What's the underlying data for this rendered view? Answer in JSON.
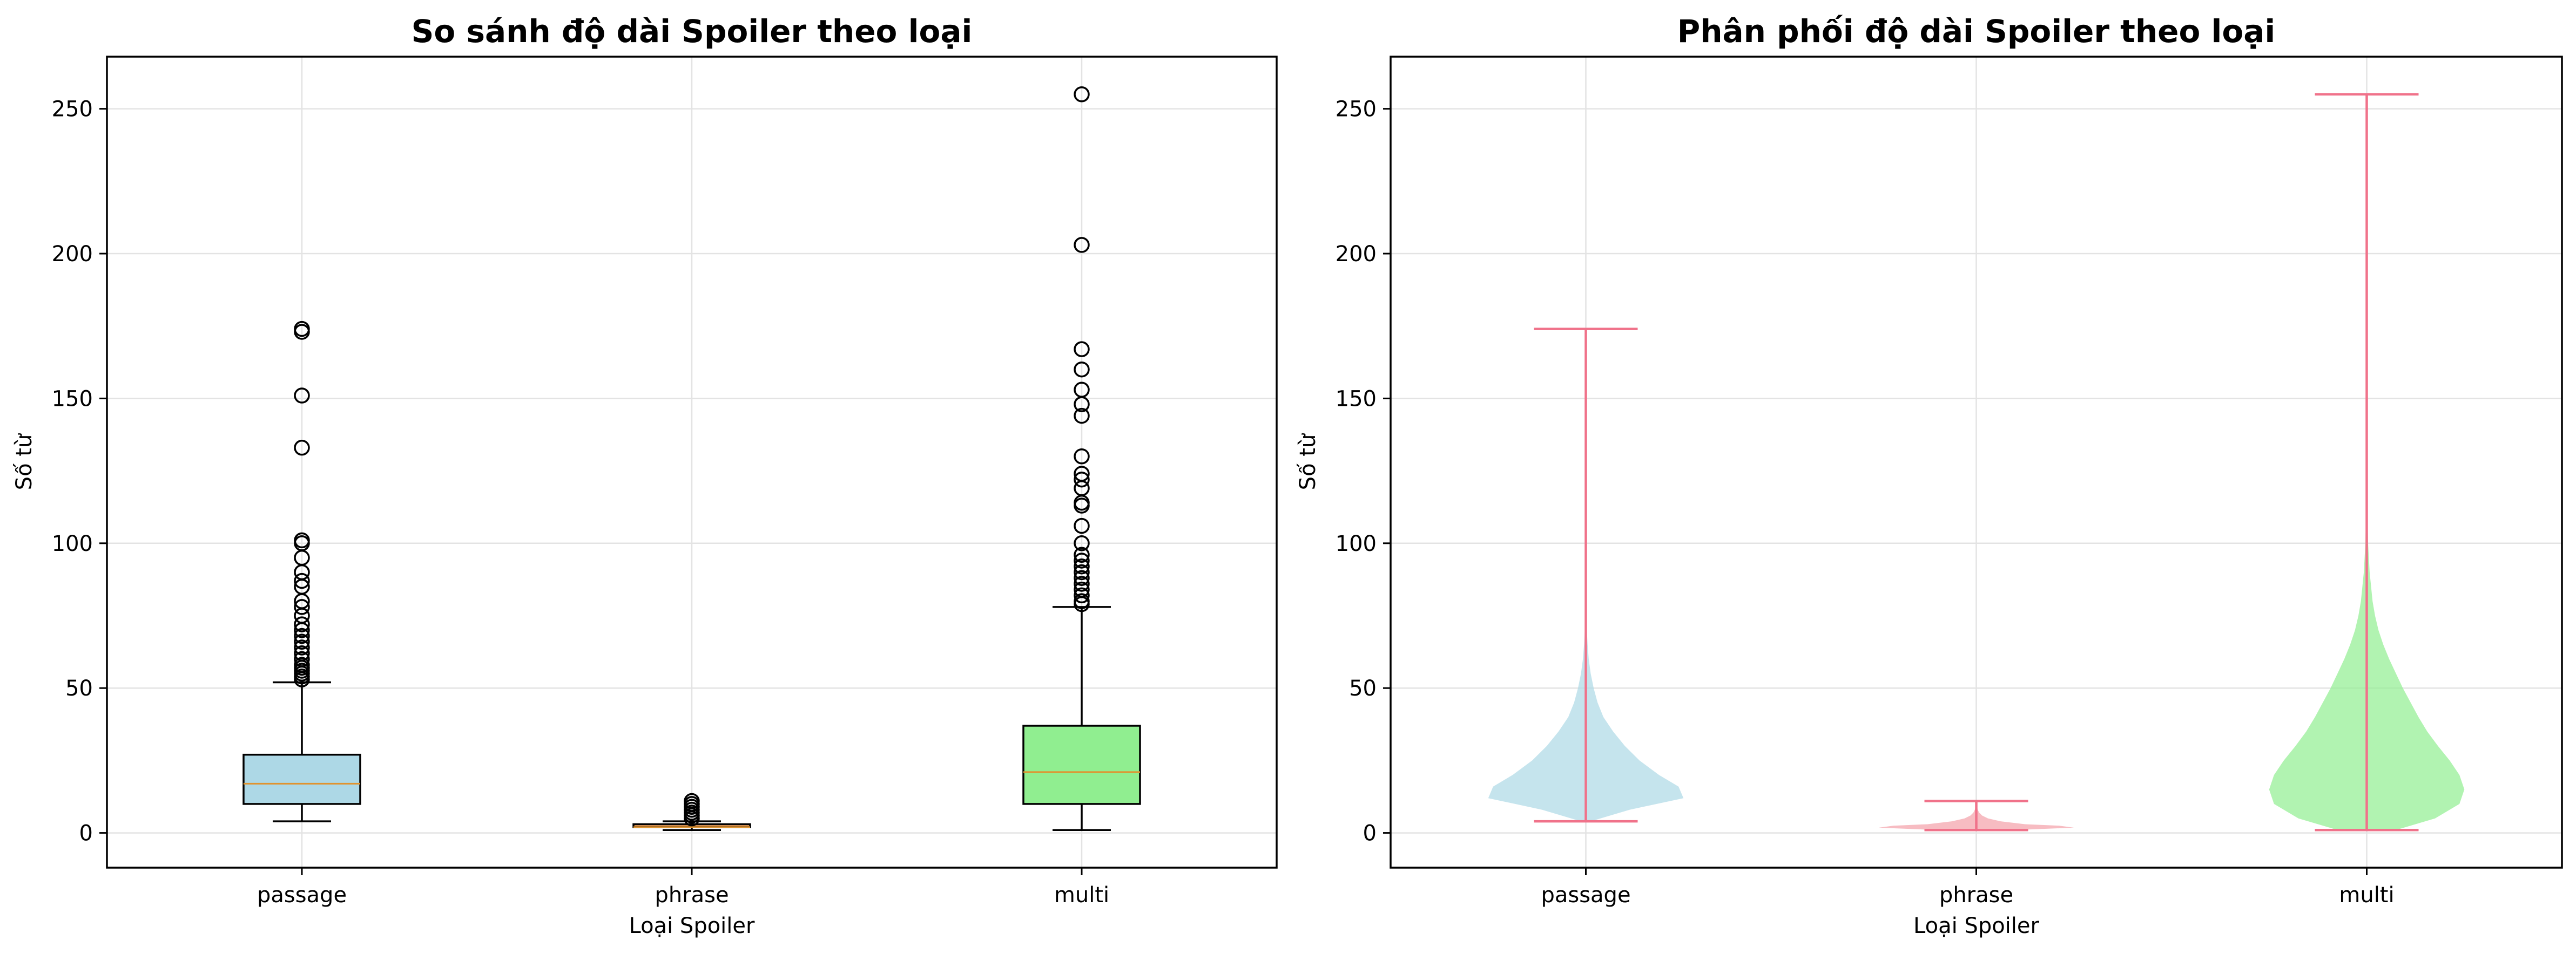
{
  "chart_data": [
    {
      "type": "box",
      "title": "So sánh độ dài Spoiler theo loại",
      "xlabel": "Loại Spoiler",
      "ylabel": "Số từ",
      "ylim": [
        -12,
        268
      ],
      "yticks": [
        0,
        50,
        100,
        150,
        200,
        250
      ],
      "grid": true,
      "categories": [
        "passage",
        "phrase",
        "multi"
      ],
      "boxes": [
        {
          "category": "passage",
          "color": "#add8e6",
          "whisker_low": 4,
          "q1": 10,
          "median": 17,
          "q3": 27,
          "whisker_high": 52,
          "outliers": [
            53,
            54,
            55,
            56,
            57,
            58,
            60,
            62,
            64,
            66,
            68,
            70,
            72,
            75,
            78,
            80,
            85,
            87,
            90,
            95,
            100,
            101,
            133,
            151,
            173,
            174
          ]
        },
        {
          "category": "phrase",
          "color": "#f4a460",
          "whisker_low": 1,
          "q1": 2,
          "median": 2,
          "q3": 3,
          "whisker_high": 4,
          "outliers": [
            5,
            6,
            7,
            8,
            9,
            10,
            11
          ]
        },
        {
          "category": "multi",
          "color": "#90ee90",
          "whisker_low": 1,
          "q1": 10,
          "median": 21,
          "q3": 37,
          "whisker_high": 78,
          "outliers": [
            79,
            80,
            82,
            84,
            86,
            88,
            90,
            92,
            94,
            96,
            100,
            106,
            113,
            114,
            119,
            122,
            124,
            130,
            144,
            148,
            153,
            160,
            167,
            203,
            255
          ]
        }
      ]
    },
    {
      "type": "violin",
      "title": "Phân phối độ dài Spoiler theo loại",
      "xlabel": "Loại Spoiler",
      "ylabel": "Số từ",
      "ylim": [
        -12,
        268
      ],
      "yticks": [
        0,
        50,
        100,
        150,
        200,
        250
      ],
      "grid": true,
      "categories": [
        "passage",
        "phrase",
        "multi"
      ],
      "line_color": "#f0728a",
      "violins": [
        {
          "category": "passage",
          "min": 4,
          "max": 174,
          "color": "#add8e6",
          "profile": [
            [
              4,
              0.05
            ],
            [
              8,
              0.45
            ],
            [
              12,
              1.0
            ],
            [
              16,
              0.95
            ],
            [
              20,
              0.75
            ],
            [
              25,
              0.55
            ],
            [
              30,
              0.4
            ],
            [
              35,
              0.28
            ],
            [
              40,
              0.18
            ],
            [
              45,
              0.12
            ],
            [
              50,
              0.08
            ],
            [
              55,
              0.05
            ],
            [
              60,
              0.03
            ],
            [
              65,
              0.018
            ],
            [
              70,
              0.01
            ],
            [
              80,
              0.005
            ],
            [
              90,
              0.003
            ],
            [
              100,
              0.002
            ],
            [
              130,
              0.001
            ],
            [
              174,
              0.0
            ]
          ]
        },
        {
          "category": "phrase",
          "min": 1,
          "max": 11,
          "color": "#f4a0a8",
          "profile": [
            [
              1,
              0.4
            ],
            [
              1.8,
              1.0
            ],
            [
              2.5,
              0.85
            ],
            [
              3,
              0.5
            ],
            [
              4,
              0.25
            ],
            [
              5,
              0.12
            ],
            [
              6,
              0.06
            ],
            [
              7,
              0.03
            ],
            [
              8,
              0.015
            ],
            [
              9,
              0.008
            ],
            [
              10,
              0.004
            ],
            [
              11,
              0.0
            ]
          ]
        },
        {
          "category": "multi",
          "min": 1,
          "max": 255,
          "color": "#90ee90",
          "profile": [
            [
              1,
              0.3
            ],
            [
              5,
              0.7
            ],
            [
              10,
              0.95
            ],
            [
              15,
              1.0
            ],
            [
              20,
              0.95
            ],
            [
              25,
              0.85
            ],
            [
              30,
              0.73
            ],
            [
              35,
              0.62
            ],
            [
              40,
              0.53
            ],
            [
              45,
              0.45
            ],
            [
              50,
              0.37
            ],
            [
              55,
              0.3
            ],
            [
              60,
              0.23
            ],
            [
              65,
              0.17
            ],
            [
              70,
              0.12
            ],
            [
              75,
              0.085
            ],
            [
              80,
              0.06
            ],
            [
              90,
              0.03
            ],
            [
              100,
              0.014
            ],
            [
              110,
              0.007
            ],
            [
              120,
              0.004
            ],
            [
              150,
              0.002
            ],
            [
              200,
              0.001
            ],
            [
              255,
              0.0
            ]
          ]
        }
      ]
    }
  ]
}
